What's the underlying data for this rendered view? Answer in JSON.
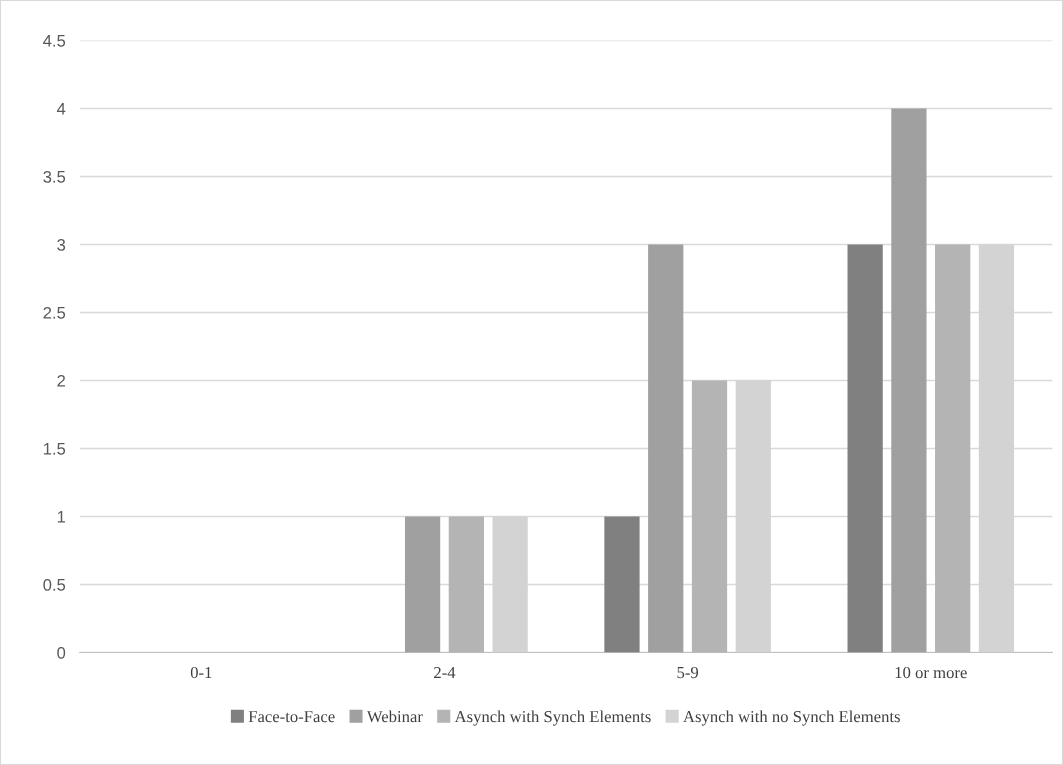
{
  "chart_data": {
    "type": "bar",
    "categories": [
      "0-1",
      "2-4",
      "5-9",
      "10 or more"
    ],
    "series": [
      {
        "name": "Face-to-Face",
        "color": "#808080",
        "values": [
          0,
          0,
          1,
          3
        ]
      },
      {
        "name": "Webinar",
        "color": "#a0a0a0",
        "values": [
          0,
          1,
          3,
          4
        ]
      },
      {
        "name": "Asynch with Synch Elements",
        "color": "#b4b4b4",
        "values": [
          0,
          1,
          2,
          3
        ]
      },
      {
        "name": "Asynch with no Synch Elements",
        "color": "#d3d3d3",
        "values": [
          0,
          1,
          2,
          3
        ]
      }
    ],
    "ylim": [
      0,
      4.5
    ],
    "yticks": [
      0,
      0.5,
      1,
      1.5,
      2,
      2.5,
      3,
      3.5,
      4,
      4.5
    ],
    "grid": "y",
    "legend": "bottom"
  }
}
